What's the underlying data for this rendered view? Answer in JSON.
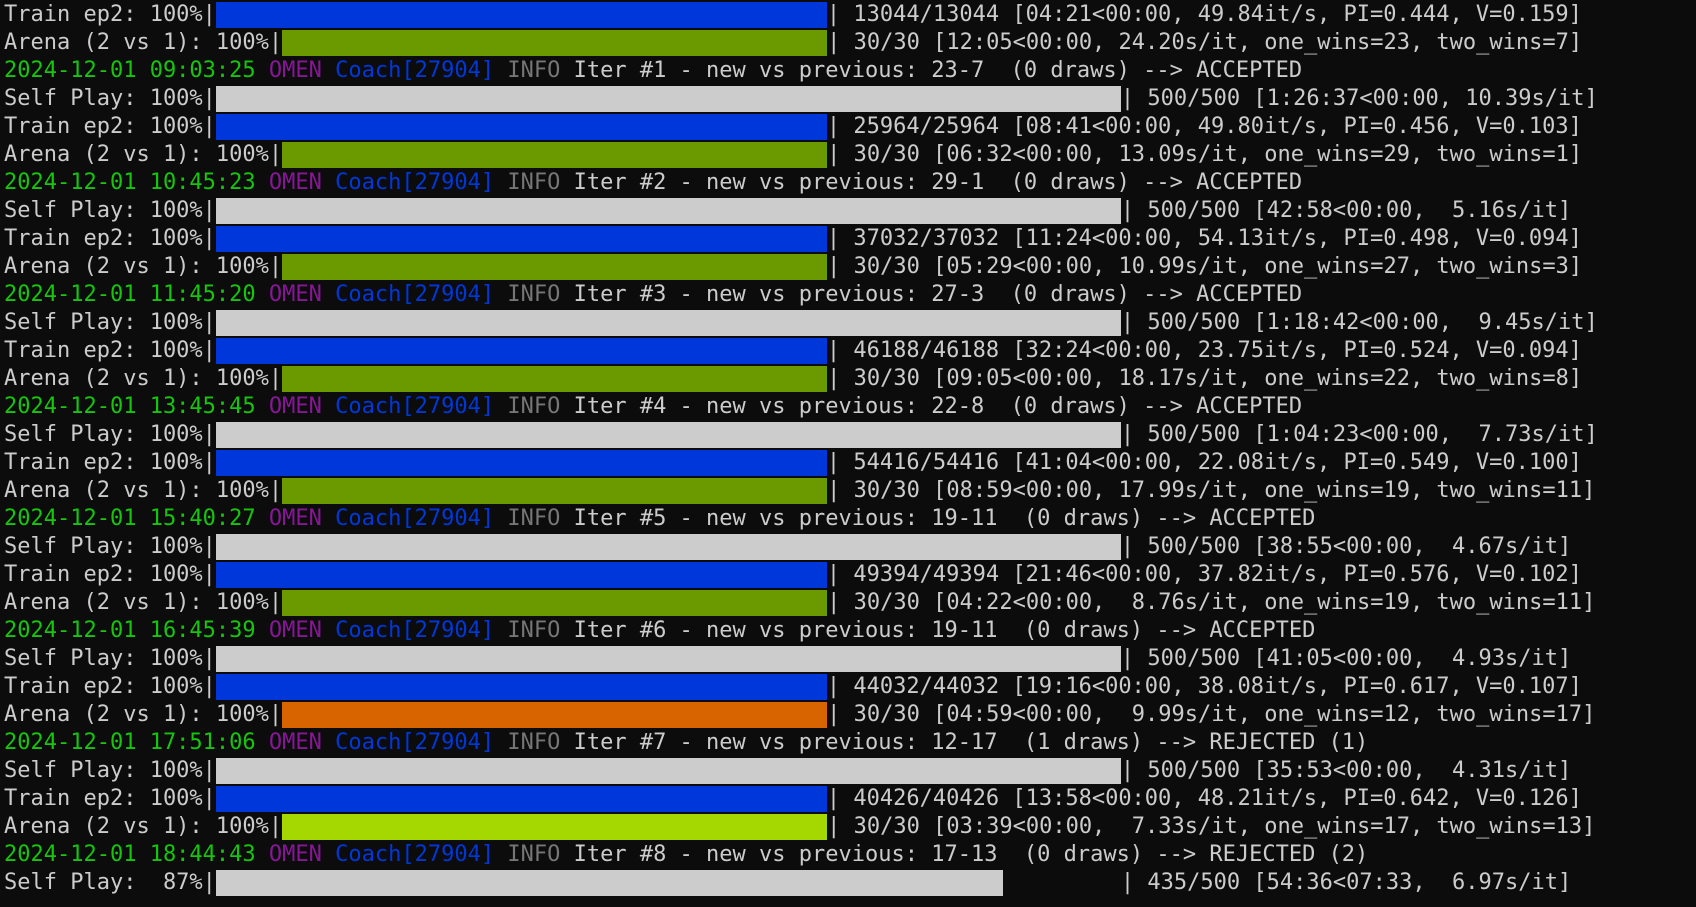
{
  "colors": {
    "self_play": "#cccccc",
    "train": "#0037da",
    "arena_default": "#6a9a00",
    "arena_rejected_1": "#d86400",
    "arena_rejected_2": "#a5d800"
  },
  "lines": [
    {
      "type": "bar",
      "label": "Train ep2: 100%|",
      "fraction": 1.0,
      "color": "train",
      "suffix": "| 13044/13044 [04:21<00:00, 49.84it/s, PI=0.444, V=0.159]"
    },
    {
      "type": "bar",
      "label": "Arena (2 vs 1): 100%|",
      "fraction": 1.0,
      "color": "arena_default",
      "suffix": "| 30/30 [12:05<00:00, 24.20s/it, one_wins=23, two_wins=7]"
    },
    {
      "type": "log",
      "ts": "2024-12-01 09:03:25",
      "host": "OMEN",
      "coach": "Coach[27904]",
      "level": "INFO",
      "msg": "Iter #1 - new vs previous: 23-7  (0 draws) --> ACCEPTED"
    },
    {
      "type": "bar",
      "label": "Self Play: 100%|",
      "fraction": 1.0,
      "color": "self_play",
      "suffix": "| 500/500 [1:26:37<00:00, 10.39s/it]"
    },
    {
      "type": "bar",
      "label": "Train ep2: 100%|",
      "fraction": 1.0,
      "color": "train",
      "suffix": "| 25964/25964 [08:41<00:00, 49.80it/s, PI=0.456, V=0.103]"
    },
    {
      "type": "bar",
      "label": "Arena (2 vs 1): 100%|",
      "fraction": 1.0,
      "color": "arena_default",
      "suffix": "| 30/30 [06:32<00:00, 13.09s/it, one_wins=29, two_wins=1]"
    },
    {
      "type": "log",
      "ts": "2024-12-01 10:45:23",
      "host": "OMEN",
      "coach": "Coach[27904]",
      "level": "INFO",
      "msg": "Iter #2 - new vs previous: 29-1  (0 draws) --> ACCEPTED"
    },
    {
      "type": "bar",
      "label": "Self Play: 100%|",
      "fraction": 1.0,
      "color": "self_play",
      "suffix": "| 500/500 [42:58<00:00,  5.16s/it]"
    },
    {
      "type": "bar",
      "label": "Train ep2: 100%|",
      "fraction": 1.0,
      "color": "train",
      "suffix": "| 37032/37032 [11:24<00:00, 54.13it/s, PI=0.498, V=0.094]"
    },
    {
      "type": "bar",
      "label": "Arena (2 vs 1): 100%|",
      "fraction": 1.0,
      "color": "arena_default",
      "suffix": "| 30/30 [05:29<00:00, 10.99s/it, one_wins=27, two_wins=3]"
    },
    {
      "type": "log",
      "ts": "2024-12-01 11:45:20",
      "host": "OMEN",
      "coach": "Coach[27904]",
      "level": "INFO",
      "msg": "Iter #3 - new vs previous: 27-3  (0 draws) --> ACCEPTED"
    },
    {
      "type": "bar",
      "label": "Self Play: 100%|",
      "fraction": 1.0,
      "color": "self_play",
      "suffix": "| 500/500 [1:18:42<00:00,  9.45s/it]"
    },
    {
      "type": "bar",
      "label": "Train ep2: 100%|",
      "fraction": 1.0,
      "color": "train",
      "suffix": "| 46188/46188 [32:24<00:00, 23.75it/s, PI=0.524, V=0.094]"
    },
    {
      "type": "bar",
      "label": "Arena (2 vs 1): 100%|",
      "fraction": 1.0,
      "color": "arena_default",
      "suffix": "| 30/30 [09:05<00:00, 18.17s/it, one_wins=22, two_wins=8]"
    },
    {
      "type": "log",
      "ts": "2024-12-01 13:45:45",
      "host": "OMEN",
      "coach": "Coach[27904]",
      "level": "INFO",
      "msg": "Iter #4 - new vs previous: 22-8  (0 draws) --> ACCEPTED"
    },
    {
      "type": "bar",
      "label": "Self Play: 100%|",
      "fraction": 1.0,
      "color": "self_play",
      "suffix": "| 500/500 [1:04:23<00:00,  7.73s/it]"
    },
    {
      "type": "bar",
      "label": "Train ep2: 100%|",
      "fraction": 1.0,
      "color": "train",
      "suffix": "| 54416/54416 [41:04<00:00, 22.08it/s, PI=0.549, V=0.100]"
    },
    {
      "type": "bar",
      "label": "Arena (2 vs 1): 100%|",
      "fraction": 1.0,
      "color": "arena_default",
      "suffix": "| 30/30 [08:59<00:00, 17.99s/it, one_wins=19, two_wins=11]"
    },
    {
      "type": "log",
      "ts": "2024-12-01 15:40:27",
      "host": "OMEN",
      "coach": "Coach[27904]",
      "level": "INFO",
      "msg": "Iter #5 - new vs previous: 19-11  (0 draws) --> ACCEPTED"
    },
    {
      "type": "bar",
      "label": "Self Play: 100%|",
      "fraction": 1.0,
      "color": "self_play",
      "suffix": "| 500/500 [38:55<00:00,  4.67s/it]"
    },
    {
      "type": "bar",
      "label": "Train ep2: 100%|",
      "fraction": 1.0,
      "color": "train",
      "suffix": "| 49394/49394 [21:46<00:00, 37.82it/s, PI=0.576, V=0.102]"
    },
    {
      "type": "bar",
      "label": "Arena (2 vs 1): 100%|",
      "fraction": 1.0,
      "color": "arena_default",
      "suffix": "| 30/30 [04:22<00:00,  8.76s/it, one_wins=19, two_wins=11]"
    },
    {
      "type": "log",
      "ts": "2024-12-01 16:45:39",
      "host": "OMEN",
      "coach": "Coach[27904]",
      "level": "INFO",
      "msg": "Iter #6 - new vs previous: 19-11  (0 draws) --> ACCEPTED"
    },
    {
      "type": "bar",
      "label": "Self Play: 100%|",
      "fraction": 1.0,
      "color": "self_play",
      "suffix": "| 500/500 [41:05<00:00,  4.93s/it]"
    },
    {
      "type": "bar",
      "label": "Train ep2: 100%|",
      "fraction": 1.0,
      "color": "train",
      "suffix": "| 44032/44032 [19:16<00:00, 38.08it/s, PI=0.617, V=0.107]"
    },
    {
      "type": "bar",
      "label": "Arena (2 vs 1): 100%|",
      "fraction": 1.0,
      "color": "arena_rejected_1",
      "suffix": "| 30/30 [04:59<00:00,  9.99s/it, one_wins=12, two_wins=17]"
    },
    {
      "type": "log",
      "ts": "2024-12-01 17:51:06",
      "host": "OMEN",
      "coach": "Coach[27904]",
      "level": "INFO",
      "msg": "Iter #7 - new vs previous: 12-17  (1 draws) --> REJECTED (1)"
    },
    {
      "type": "bar",
      "label": "Self Play: 100%|",
      "fraction": 1.0,
      "color": "self_play",
      "suffix": "| 500/500 [35:53<00:00,  4.31s/it]"
    },
    {
      "type": "bar",
      "label": "Train ep2: 100%|",
      "fraction": 1.0,
      "color": "train",
      "suffix": "| 40426/40426 [13:58<00:00, 48.21it/s, PI=0.642, V=0.126]"
    },
    {
      "type": "bar",
      "label": "Arena (2 vs 1): 100%|",
      "fraction": 1.0,
      "color": "arena_rejected_2",
      "suffix": "| 30/30 [03:39<00:00,  7.33s/it, one_wins=17, two_wins=13]"
    },
    {
      "type": "log",
      "ts": "2024-12-01 18:44:43",
      "host": "OMEN",
      "coach": "Coach[27904]",
      "level": "INFO",
      "msg": "Iter #8 - new vs previous: 17-13  (0 draws) --> REJECTED (2)"
    },
    {
      "type": "bar",
      "label": "Self Play:  87%|",
      "fraction": 0.87,
      "color": "self_play",
      "suffix": "| 435/500 [54:36<07:33,  6.97s/it]"
    }
  ]
}
